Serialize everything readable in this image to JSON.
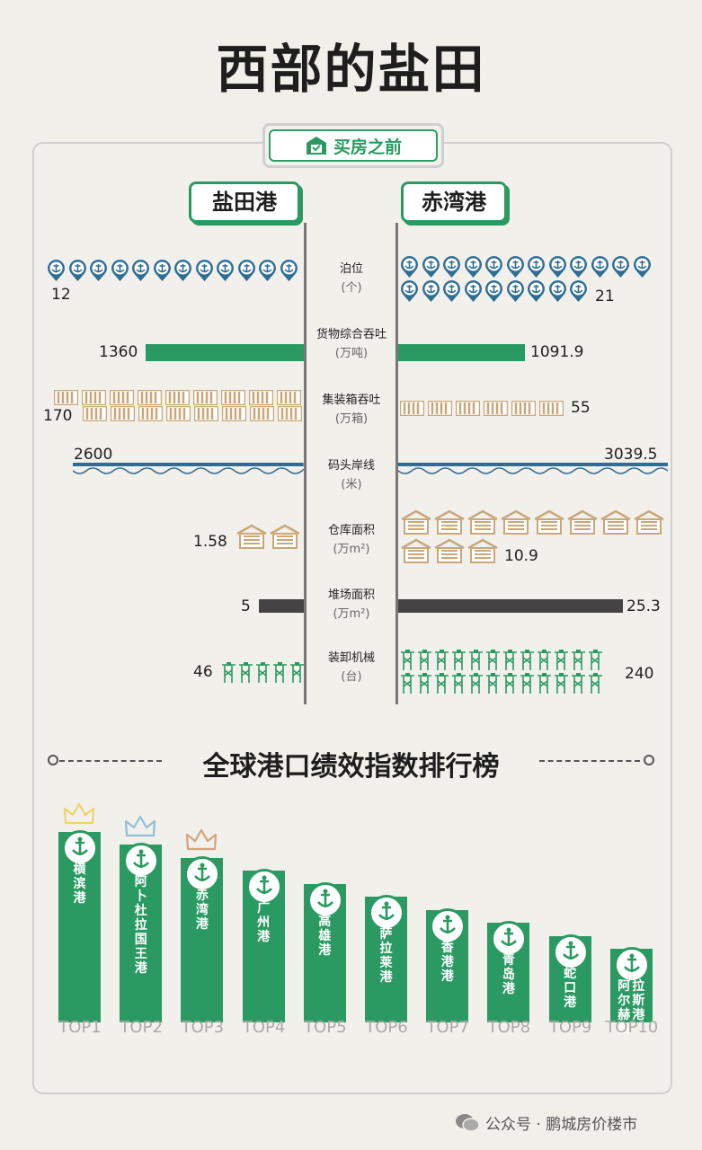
{
  "title": "西部的盐田",
  "brand": "买房之前",
  "ports": {
    "left": "盐田港",
    "right": "赤湾港"
  },
  "chart_data": [
    {
      "type": "bar",
      "categories": [
        "泊位",
        "货物综合吞吐",
        "集装箱吞吐",
        "码头岸线",
        "仓库面积",
        "堆场面积",
        "装卸机械"
      ],
      "units": [
        "(个)",
        "(万吨)",
        "(万箱)",
        "(米)",
        "(万m²)",
        "(万m²)",
        "(台)"
      ],
      "series": [
        {
          "name": "盐田港",
          "values": [
            12,
            1360,
            170,
            2600,
            1.58,
            5,
            46
          ]
        },
        {
          "name": "赤湾港",
          "values": [
            21,
            1091.9,
            55,
            3039.5,
            10.9,
            25.3,
            240
          ]
        }
      ],
      "value_labels": {
        "盐田港": [
          "12",
          "1360",
          "170",
          "2600",
          "1.58",
          "5",
          "46"
        ],
        "赤湾港": [
          "21",
          "1091.9",
          "55",
          "3039.5",
          "10.9",
          "25.3",
          "240"
        ]
      }
    },
    {
      "type": "bar",
      "title": "全球港口绩效指数排行榜",
      "categories": [
        "横滨港",
        "阿卜杜拉国王港",
        "赤湾港",
        "广州港",
        "高雄港",
        "萨拉莱港",
        "香港港",
        "青岛港",
        "蛇口港",
        "阿尔赫西拉斯港"
      ],
      "ranks": [
        "TOP1",
        "TOP2",
        "TOP3",
        "TOP4",
        "TOP5",
        "TOP6",
        "TOP7",
        "TOP8",
        "TOP9",
        "TOP10"
      ],
      "values": [
        10,
        9,
        8,
        7,
        6,
        5,
        4,
        3,
        2,
        1
      ]
    }
  ],
  "footer": "公众号 · 鹏城房价楼市",
  "colors": {
    "green": "#2b9a62",
    "blue": "#2f6e93",
    "box": "#c9a77a",
    "dark": "#444444",
    "gold": "#f0d36a",
    "silver": "#8fbfdc",
    "bronze": "#d4a37e"
  }
}
